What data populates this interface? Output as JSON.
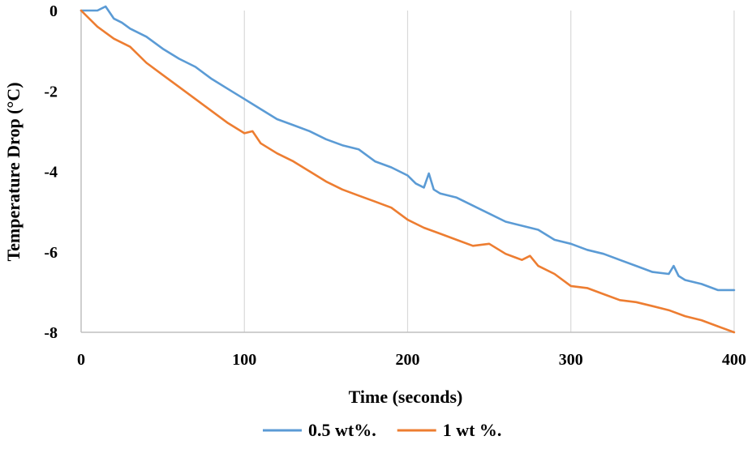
{
  "chart_data": {
    "type": "line",
    "xlabel": "Time (seconds)",
    "ylabel": "Temperature Drop (°C)",
    "xlim": [
      0,
      400
    ],
    "ylim": [
      -8,
      0
    ],
    "x_ticks": [
      0,
      100,
      200,
      300,
      400
    ],
    "y_ticks": [
      0,
      -2,
      -4,
      -6,
      -8
    ],
    "x_tick_labels": [
      "0",
      "100",
      "200",
      "300",
      "400"
    ],
    "y_tick_labels": [
      "0",
      "-2",
      "-4",
      "-6",
      "-8"
    ],
    "grid": "vertical",
    "legend_position": "bottom",
    "series": [
      {
        "name": "0.5 wt%.",
        "color": "#5B9BD5",
        "x": [
          0,
          10,
          15,
          20,
          25,
          30,
          40,
          50,
          60,
          70,
          80,
          90,
          100,
          110,
          120,
          130,
          140,
          150,
          160,
          170,
          180,
          190,
          200,
          205,
          210,
          213,
          216,
          220,
          230,
          240,
          250,
          260,
          270,
          280,
          290,
          300,
          310,
          320,
          330,
          340,
          350,
          360,
          363,
          366,
          370,
          380,
          390,
          400
        ],
        "y": [
          0.0,
          0.0,
          0.1,
          -0.2,
          -0.3,
          -0.45,
          -0.65,
          -0.95,
          -1.2,
          -1.4,
          -1.7,
          -1.95,
          -2.2,
          -2.45,
          -2.7,
          -2.85,
          -3.0,
          -3.2,
          -3.35,
          -3.45,
          -3.75,
          -3.9,
          -4.1,
          -4.3,
          -4.4,
          -4.05,
          -4.45,
          -4.55,
          -4.65,
          -4.85,
          -5.05,
          -5.25,
          -5.35,
          -5.45,
          -5.7,
          -5.8,
          -5.95,
          -6.05,
          -6.2,
          -6.35,
          -6.5,
          -6.55,
          -6.35,
          -6.6,
          -6.7,
          -6.8,
          -6.95,
          -6.95
        ]
      },
      {
        "name": "1 wt %.",
        "color": "#ED7D31",
        "x": [
          0,
          10,
          20,
          30,
          40,
          50,
          60,
          70,
          80,
          90,
          100,
          105,
          110,
          120,
          130,
          140,
          150,
          160,
          170,
          180,
          190,
          200,
          210,
          220,
          230,
          240,
          250,
          260,
          270,
          275,
          280,
          290,
          300,
          310,
          320,
          330,
          340,
          350,
          360,
          370,
          380,
          390,
          400
        ],
        "y": [
          0.0,
          -0.4,
          -0.7,
          -0.9,
          -1.3,
          -1.6,
          -1.9,
          -2.2,
          -2.5,
          -2.8,
          -3.05,
          -3.0,
          -3.3,
          -3.55,
          -3.75,
          -4.0,
          -4.25,
          -4.45,
          -4.6,
          -4.75,
          -4.9,
          -5.2,
          -5.4,
          -5.55,
          -5.7,
          -5.85,
          -5.8,
          -6.05,
          -6.2,
          -6.1,
          -6.35,
          -6.55,
          -6.85,
          -6.9,
          -7.05,
          -7.2,
          -7.25,
          -7.35,
          -7.45,
          -7.6,
          -7.7,
          -7.85,
          -8.0
        ]
      }
    ]
  }
}
